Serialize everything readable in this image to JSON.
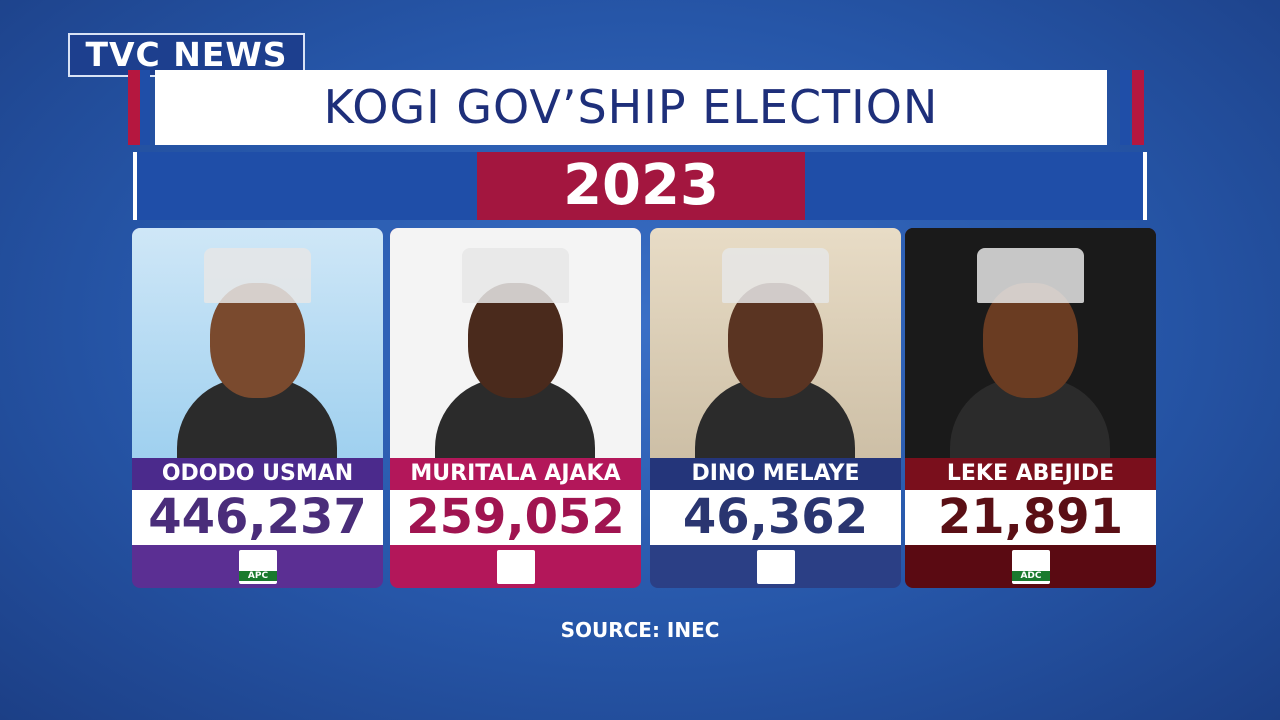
{
  "header": {
    "logo": "TVC NEWS",
    "title": "KOGI GOV’SHIP ELECTION",
    "year": "2023"
  },
  "candidates": [
    {
      "name": "ODODO USMAN",
      "votes": "446,237",
      "party": "APC"
    },
    {
      "name": "MURITALA AJAKA",
      "votes": "259,052"
    },
    {
      "name": "DINO MELAYE",
      "votes": "46,362"
    },
    {
      "name": "LEKE ABEJIDE",
      "votes": "21,891",
      "party": "ADC"
    }
  ],
  "footer": {
    "source": "SOURCE: INEC"
  }
}
